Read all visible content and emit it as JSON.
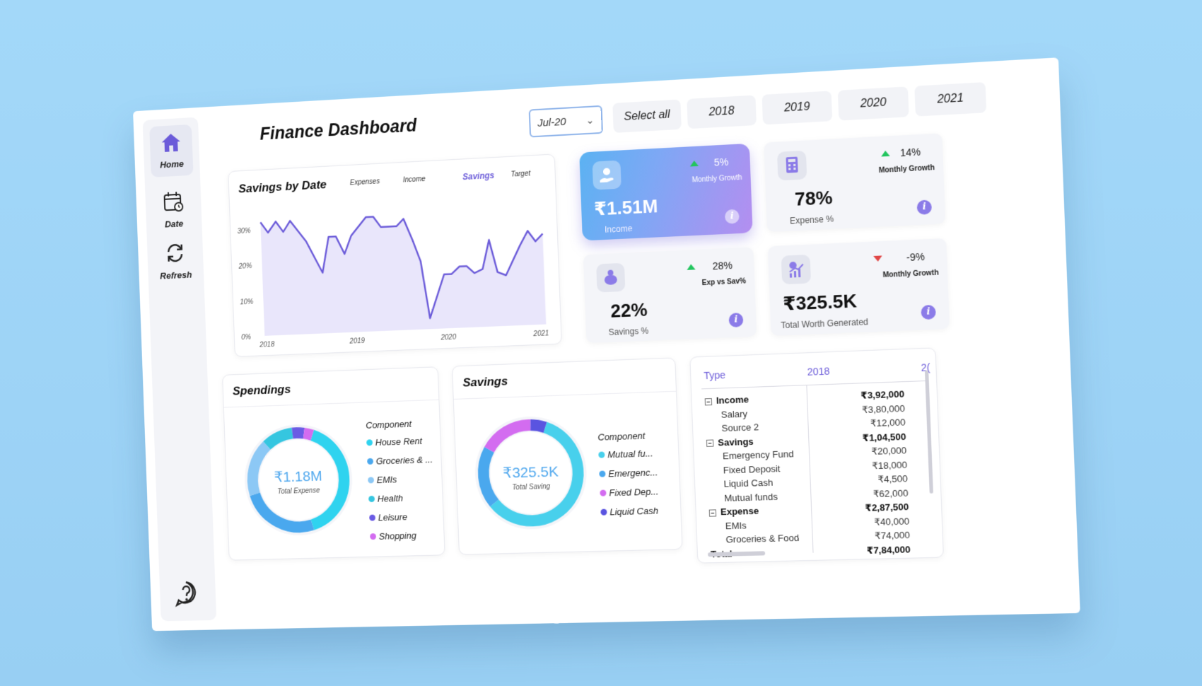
{
  "app": {
    "title": "Finance Dashboard"
  },
  "sidebar": {
    "items": [
      {
        "label": "Home",
        "icon": "home-icon"
      },
      {
        "label": "Date",
        "icon": "calendar-icon"
      },
      {
        "label": "Refresh",
        "icon": "refresh-icon"
      }
    ],
    "help_icon": "help-icon"
  },
  "filters": {
    "month_selected": "Jul-20",
    "buttons": [
      "Select all",
      "2018",
      "2019",
      "2020",
      "2021"
    ]
  },
  "savings_chart": {
    "title": "Savings by Date",
    "tabs": [
      "Expenses",
      "Income",
      "Savings",
      "Target"
    ],
    "active_tab": "Savings"
  },
  "kpis": {
    "income": {
      "value": "₹1.51M",
      "label": "Income",
      "delta": "5%",
      "sub": "Monthly Growth",
      "trend": "up"
    },
    "expense": {
      "value": "78%",
      "label": "Expense %",
      "delta": "14%",
      "sub": "Monthly Growth",
      "trend": "up"
    },
    "savings": {
      "value": "22%",
      "label": "Savings %",
      "delta": "28%",
      "sub": "Exp vs Sav%",
      "trend": "up"
    },
    "total": {
      "value": "₹325.5K",
      "label": "Total Worth Generated",
      "delta": "-9%",
      "sub": "Monthly Growth",
      "trend": "down"
    }
  },
  "spendings": {
    "title": "Spendings",
    "center_value": "₹1.18M",
    "center_label": "Total Expense",
    "legend_title": "Component",
    "items": [
      {
        "label": "House Rent",
        "color": "#2fd3ef"
      },
      {
        "label": "Groceries & ...",
        "color": "#4aa8ee"
      },
      {
        "label": "EMIs",
        "color": "#8cc8f5"
      },
      {
        "label": "Health",
        "color": "#35c6e0"
      },
      {
        "label": "Leisure",
        "color": "#6a5be4"
      },
      {
        "label": "Shopping",
        "color": "#d36cf0"
      }
    ]
  },
  "savings": {
    "title": "Savings",
    "center_value": "₹325.5K",
    "center_label": "Total Saving",
    "legend_title": "Component",
    "items": [
      {
        "label": "Mutual fu...",
        "color": "#48d0ec"
      },
      {
        "label": "Emergenc...",
        "color": "#4aa8ee"
      },
      {
        "label": "Fixed Dep...",
        "color": "#d36cf0"
      },
      {
        "label": "Liquid Cash",
        "color": "#5a54e0"
      }
    ]
  },
  "table": {
    "headers": [
      "Type",
      "2018",
      "2("
    ],
    "rows": [
      {
        "name": "Income",
        "value": "₹3,92,000",
        "level": 0,
        "bold": true,
        "expand": "⊟"
      },
      {
        "name": "Salary",
        "value": "₹3,80,000",
        "level": 1,
        "bold": false
      },
      {
        "name": "Source 2",
        "value": "₹12,000",
        "level": 1,
        "bold": false
      },
      {
        "name": "Savings",
        "value": "₹1,04,500",
        "level": 0,
        "bold": true,
        "expand": "⊟"
      },
      {
        "name": "Emergency Fund",
        "value": "₹20,000",
        "level": 1,
        "bold": false
      },
      {
        "name": "Fixed Deposit",
        "value": "₹18,000",
        "level": 1,
        "bold": false
      },
      {
        "name": "Liquid Cash",
        "value": "₹4,500",
        "level": 1,
        "bold": false
      },
      {
        "name": "Mutual funds",
        "value": "₹62,000",
        "level": 1,
        "bold": false
      },
      {
        "name": "Expense",
        "value": "₹2,87,500",
        "level": 0,
        "bold": true,
        "expand": "⊟"
      },
      {
        "name": "EMIs",
        "value": "₹40,000",
        "level": 1,
        "bold": false
      },
      {
        "name": "Groceries & Food",
        "value": "₹74,000",
        "level": 1,
        "bold": false
      },
      {
        "name": "Total",
        "value": "₹7,84,000",
        "level": 0,
        "bold": true
      }
    ]
  },
  "chart_data": [
    {
      "type": "area",
      "title": "Savings by Date",
      "xlabel": "",
      "ylabel": "",
      "x_ticks": [
        "2018",
        "2019",
        "2020",
        "2021"
      ],
      "y_ticks": [
        "0%",
        "10%",
        "20%",
        "30%"
      ],
      "ylim": [
        0,
        35
      ],
      "x": [
        2018.0,
        2018.08,
        2018.17,
        2018.25,
        2018.33,
        2018.5,
        2018.67,
        2018.75,
        2018.83,
        2018.92,
        2019.0,
        2019.17,
        2019.25,
        2019.33,
        2019.5,
        2019.58,
        2019.67,
        2019.75,
        2019.83,
        2020.0,
        2020.08,
        2020.17,
        2020.25,
        2020.33,
        2020.42,
        2020.5,
        2020.58,
        2020.67,
        2020.75,
        2020.83,
        2020.92,
        2021.0,
        2021.08
      ],
      "series": [
        {
          "values": [
            32,
            29,
            32,
            29,
            32,
            26,
            17,
            27,
            27,
            22,
            27,
            32,
            32,
            29,
            29,
            31,
            25,
            19,
            3,
            15,
            15,
            17,
            17,
            15,
            16,
            24,
            15,
            14,
            18,
            22,
            26,
            23,
            25
          ]
        }
      ],
      "color": "#6b5bd9"
    },
    {
      "type": "pie",
      "title": "Spendings",
      "categories": [
        "House Rent",
        "Groceries & ...",
        "EMIs",
        "Health",
        "Leisure",
        "Shopping"
      ],
      "values": [
        40,
        25,
        18,
        10,
        4,
        3
      ]
    },
    {
      "type": "pie",
      "title": "Savings",
      "categories": [
        "Mutual fu...",
        "Emergenc...",
        "Fixed Dep...",
        "Liquid Cash"
      ],
      "values": [
        59,
        19,
        17,
        5
      ]
    }
  ]
}
